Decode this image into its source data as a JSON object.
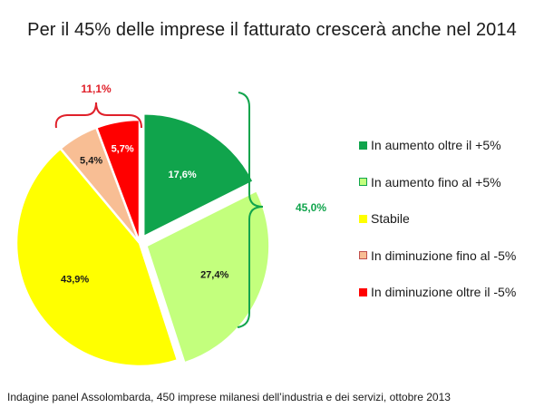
{
  "header": {
    "title": "Per il 45% delle imprese il fatturato crescerà anche nel 2014"
  },
  "footer": {
    "note": "Indagine panel Assolombarda, 450 imprese milanesi dell’industria e dei servizi, ottobre 2013"
  },
  "colors": {
    "aumento_oltre": "#10a44c",
    "aumento_fino": "#c3ff7d",
    "stabile": "#ffff00",
    "diminuzione_fino": "#f8be94",
    "diminuzione_oltre": "#ff0000",
    "bracket_growth": "#10a44c",
    "bracket_decline": "#e0202a"
  },
  "chart_data": {
    "type": "pie",
    "title": "Per il 45% delle imprese il fatturato crescerà anche nel 2014",
    "slices": [
      {
        "label": "In aumento oltre il +5%",
        "value": 17.6,
        "value_label": "17,6%",
        "color": "#10a44c",
        "label_color": "#ffffff",
        "exploded": true
      },
      {
        "label": "In aumento fino al +5%",
        "value": 27.4,
        "value_label": "27,4%",
        "color": "#c3ff7d",
        "label_color": "#1a1a1a",
        "exploded": true
      },
      {
        "label": "Stabile",
        "value": 43.9,
        "value_label": "43,9%",
        "color": "#ffff00",
        "label_color": "#1a1a1a",
        "exploded": false
      },
      {
        "label": "In diminuzione fino al -5%",
        "value": 5.4,
        "value_label": "5,4%",
        "color": "#f8be94",
        "label_color": "#1a1a1a",
        "exploded": false
      },
      {
        "label": "In diminuzione oltre il -5%",
        "value": 5.7,
        "value_label": "5,7%",
        "color": "#ff0000",
        "label_color": "#ffffff",
        "exploded": false
      }
    ],
    "annotations": [
      {
        "text": "45,0%",
        "refers_to": "In aumento oltre il +5% + In aumento fino al +5%"
      },
      {
        "text": "11,1%",
        "refers_to": "In diminuzione fino al -5% + In diminuzione oltre il -5%"
      }
    ],
    "legend_position": "right"
  }
}
